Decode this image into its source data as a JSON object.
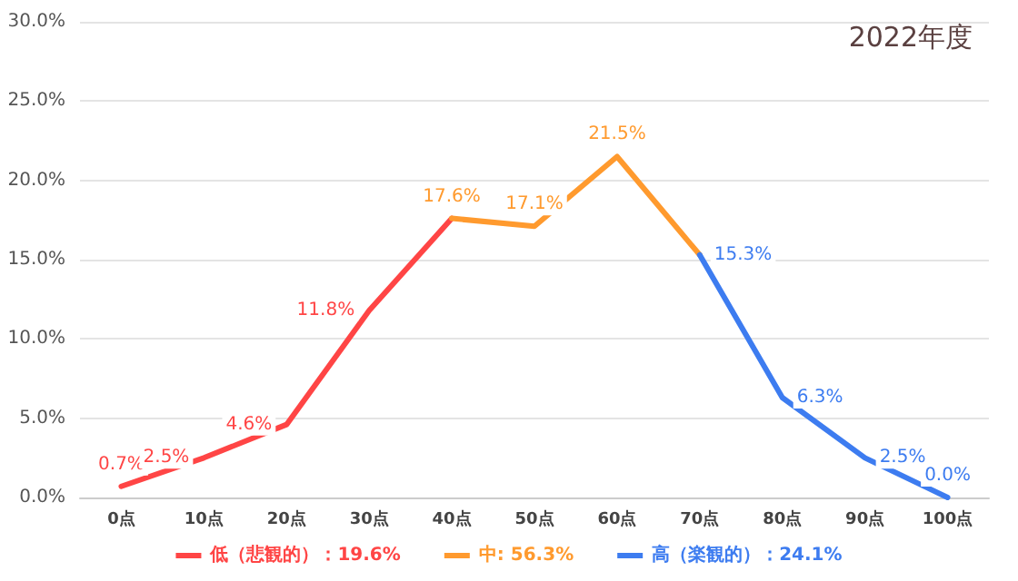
{
  "chart_data": {
    "type": "line",
    "title": "2022年度",
    "categories": [
      "0点",
      "10点",
      "20点",
      "30点",
      "40点",
      "50点",
      "60点",
      "70点",
      "80点",
      "90点",
      "100点"
    ],
    "series": [
      {
        "name": "低（悲観的）：19.6%",
        "color": "#ff4545",
        "values": [
          0.7,
          2.5,
          4.6,
          11.8,
          17.6,
          null,
          null,
          null,
          null,
          null,
          null
        ],
        "value_labels": [
          "0.7%",
          "2.5%",
          "4.6%",
          "11.8%",
          null,
          null,
          null,
          null,
          null,
          null,
          null
        ]
      },
      {
        "name": "中: 56.3%",
        "color": "#ff9a2e",
        "values": [
          null,
          null,
          null,
          null,
          17.6,
          17.1,
          21.5,
          15.3,
          null,
          null,
          null
        ],
        "value_labels": [
          null,
          null,
          null,
          null,
          "17.6%",
          "17.1%",
          "21.5%",
          null,
          null,
          null,
          null
        ]
      },
      {
        "name": "高（楽観的）：24.1%",
        "color": "#3d7cf0",
        "values": [
          null,
          null,
          null,
          null,
          null,
          null,
          null,
          15.3,
          6.3,
          2.5,
          0.0
        ],
        "value_labels": [
          null,
          null,
          null,
          null,
          null,
          null,
          null,
          "15.3%",
          "6.3%",
          "2.5%",
          "0.0%"
        ]
      }
    ],
    "ylim": [
      0,
      30
    ],
    "yticks": [
      {
        "value": 0,
        "label": "0.0%"
      },
      {
        "value": 5,
        "label": "5.0%"
      },
      {
        "value": 10,
        "label": "10.0%"
      },
      {
        "value": 15,
        "label": "15.0%"
      },
      {
        "value": 20,
        "label": "20.0%"
      },
      {
        "value": 25,
        "label": "25.0%"
      },
      {
        "value": 30,
        "label": "30.0%"
      }
    ],
    "grid": "y",
    "legend": "bottom",
    "marker": "none",
    "line_style": "solid"
  }
}
